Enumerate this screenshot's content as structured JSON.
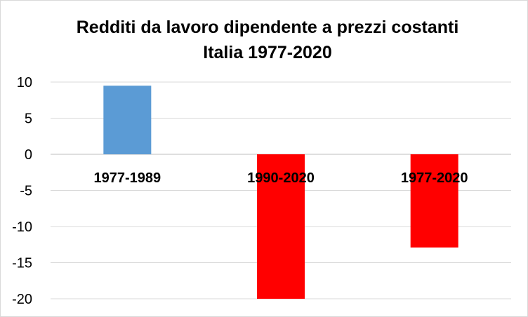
{
  "chart_data": {
    "type": "bar",
    "title": "Redditi da lavoro dipendente a prezzi costanti",
    "subtitle": "Italia 1977-2020",
    "categories": [
      "1977-1989",
      "1990-2020",
      "1977-2020"
    ],
    "values": [
      9.5,
      -20,
      -12.9
    ],
    "colors": [
      "#5b9bd5",
      "#ff0000",
      "#ff0000"
    ],
    "ylim": [
      -20,
      10
    ],
    "yticks": [
      10,
      5,
      0,
      -5,
      -10,
      -15,
      -20
    ],
    "grid": true,
    "legend": "none",
    "xlabel": "",
    "ylabel": ""
  }
}
